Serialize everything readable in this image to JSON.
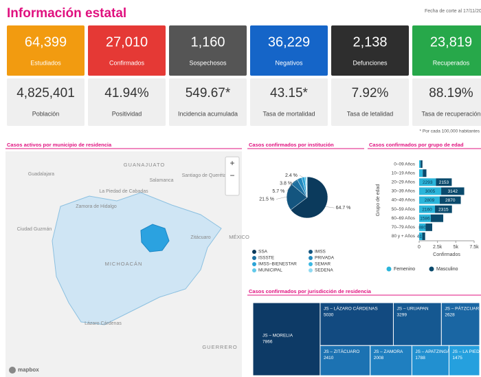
{
  "header": {
    "title": "Información estatal",
    "date": "Fecha de corte al 17/11/20"
  },
  "cards": [
    {
      "value": "64,399",
      "label": "Estudiados",
      "color": "#f29b10"
    },
    {
      "value": "27,010",
      "label": "Confirmados",
      "color": "#e53935"
    },
    {
      "value": "1,160",
      "label": "Sospechosos",
      "color": "#555555"
    },
    {
      "value": "36,229",
      "label": "Negativos",
      "color": "#1565c8"
    },
    {
      "value": "2,138",
      "label": "Defunciones",
      "color": "#2e2e2e"
    },
    {
      "value": "23,819",
      "label": "Recuperados",
      "color": "#27a84a"
    }
  ],
  "indicators": [
    {
      "value": "4,825,401",
      "label": "Población"
    },
    {
      "value": "41.94%",
      "label": "Positividad"
    },
    {
      "value": "549.67*",
      "label": "Incidencia acumulada"
    },
    {
      "value": "43.15*",
      "label": "Tasa de mortalidad"
    },
    {
      "value": "7.92%",
      "label": "Tasa de letalidad"
    },
    {
      "value": "88.19%",
      "label": "Tasa de recuperación"
    }
  ],
  "footnote": "* Por cada 100,000 habitantes",
  "map": {
    "title": "Casos activos por municipio de residencia",
    "labels": [
      "GUANAJUATO",
      "Santiago de Querétaro",
      "Guadalajara",
      "Salamanca",
      "La Piedad de Cabadas",
      "Zamora de Hidalgo",
      "Ciudad Guzmán",
      "MICHOACÁN",
      "Zitácuaro",
      "Lázaro Cárdenas",
      "GUERRERO",
      "MÉXICO"
    ],
    "attribution": "mapbox"
  },
  "chart_data": [
    {
      "type": "pie",
      "title": "Casos confirmados por institución",
      "categories": [
        "SSA",
        "IMSS",
        "ISSSTE",
        "PRIVADA",
        "IMSS–BIENESTAR",
        "SEMAR",
        "MUNICIPAL",
        "SEDENA"
      ],
      "values": [
        64.7,
        21.5,
        5.7,
        3.8,
        2.4,
        0.9,
        0.6,
        0.4
      ],
      "value_labels": [
        "64.7 %",
        "21.5 %",
        "5.7 %",
        "3.8 %",
        "2.4 %",
        null,
        null,
        null
      ],
      "colors": [
        "#0b3a5c",
        "#14557f",
        "#1c6fa0",
        "#2389bd",
        "#2aa3d6",
        "#3cb8e3",
        "#62c9ea",
        "#8fdaf2"
      ]
    },
    {
      "type": "bar",
      "orientation": "horizontal",
      "stacked": true,
      "title": "Casos confirmados por grupo de edad",
      "categories": [
        "0–09 Años",
        "10–19 Años",
        "20–29 Años",
        "30–39 Años",
        "40–49 Años",
        "50–59 Años",
        "60–69 Años",
        "70–79 Años",
        "80 y + Años"
      ],
      "series": [
        {
          "name": "Femenino",
          "color": "#2bb5da",
          "values": [
            200,
            490,
            2293,
            3005,
            2809,
            2160,
            1586,
            880,
            417
          ],
          "value_labels": [
            null,
            null,
            "2293",
            "3005",
            "2809",
            "2160",
            "1586",
            "880",
            "417"
          ]
        },
        {
          "name": "Masculino",
          "color": "#0a4a6c",
          "values": [
            250,
            500,
            2153,
            3142,
            2870,
            2315,
            1700,
            900,
            400
          ],
          "value_labels": [
            null,
            null,
            "2153",
            "3142",
            "2870",
            "2315",
            null,
            null,
            null
          ]
        }
      ],
      "xlim": [
        0,
        7500
      ],
      "xticks": [
        0,
        {
          "value": 2500,
          "label": "2.5k"
        },
        {
          "value": 5000,
          "label": "5k"
        },
        {
          "value": 7500,
          "label": "7.5k"
        }
      ],
      "xlabel": "Confirmados",
      "ylabel": "Grupo de edad"
    },
    {
      "type": "treemap",
      "title": "Casos confirmados por jurisdicción de residencia",
      "categories": [
        "JS – MORELIA",
        "JS – LÁZARO CÁRDENAS",
        "JS – URUAPAN",
        "JS – PÁTZCUARO",
        "JS – ZITÁCUARO",
        "JS – ZAMORA",
        "JS – APATZINGÁN",
        "JS – LA PIEDAD"
      ],
      "values": [
        7866,
        5030,
        3299,
        2628,
        2410,
        2008,
        1788,
        1475
      ],
      "colors": [
        "#0d3a66",
        "#124a80",
        "#155891",
        "#1a66a3",
        "#1c72b2",
        "#1f7fc0",
        "#2290d0",
        "#25a0de"
      ]
    }
  ]
}
